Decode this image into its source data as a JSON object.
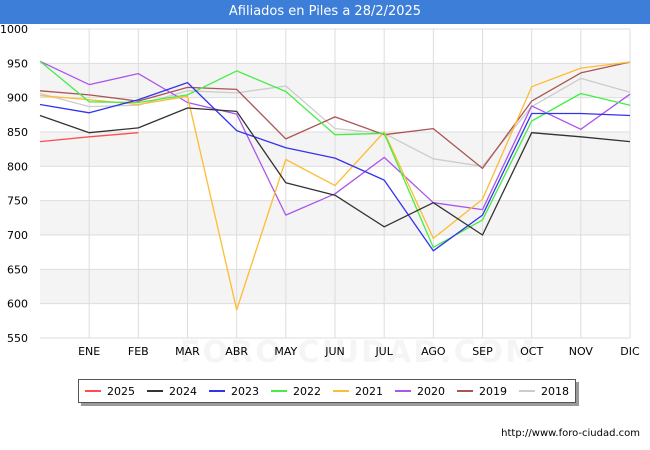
{
  "title": "Afiliados en Piles a 28/2/2025",
  "footer_url": "http://www.foro-ciudad.com",
  "watermark": "FORO-CIUDAD.COM",
  "chart_data": {
    "type": "line",
    "categories": [
      "",
      "ENE",
      "FEB",
      "MAR",
      "ABR",
      "MAY",
      "JUN",
      "JUL",
      "AGO",
      "SEP",
      "OCT",
      "NOV",
      "DIC"
    ],
    "ylim": [
      550,
      1000
    ],
    "yticks": [
      550,
      600,
      650,
      700,
      750,
      800,
      850,
      900,
      950,
      1000
    ],
    "grid": true,
    "legend_position": "bottom",
    "series": [
      {
        "name": "2025",
        "color": "#ff4d4d",
        "values": [
          836,
          843,
          849,
          null,
          null,
          null,
          null,
          null,
          null,
          null,
          null,
          null,
          null
        ]
      },
      {
        "name": "2024",
        "color": "#333333",
        "values": [
          874,
          849,
          856,
          885,
          880,
          776,
          758,
          712,
          747,
          700,
          849,
          843,
          836
        ]
      },
      {
        "name": "2023",
        "color": "#3333ee",
        "values": [
          890,
          878,
          897,
          922,
          852,
          827,
          812,
          780,
          677,
          729,
          877,
          877,
          874
        ]
      },
      {
        "name": "2022",
        "color": "#44ee44",
        "values": [
          953,
          894,
          893,
          904,
          939,
          909,
          846,
          848,
          682,
          722,
          866,
          906,
          889
        ]
      },
      {
        "name": "2021",
        "color": "#ffbb33",
        "values": [
          903,
          897,
          890,
          902,
          591,
          810,
          772,
          850,
          695,
          752,
          916,
          943,
          952
        ]
      },
      {
        "name": "2020",
        "color": "#aa55ee",
        "values": [
          953,
          919,
          935,
          893,
          876,
          729,
          760,
          813,
          747,
          737,
          888,
          854,
          905
        ]
      },
      {
        "name": "2019",
        "color": "#aa5555",
        "values": [
          910,
          904,
          895,
          915,
          912,
          840,
          872,
          846,
          855,
          797,
          895,
          936,
          952
        ]
      },
      {
        "name": "2018",
        "color": "#cccccc",
        "values": [
          906,
          887,
          889,
          910,
          907,
          917,
          855,
          848,
          811,
          800,
          887,
          928,
          908
        ]
      }
    ]
  }
}
